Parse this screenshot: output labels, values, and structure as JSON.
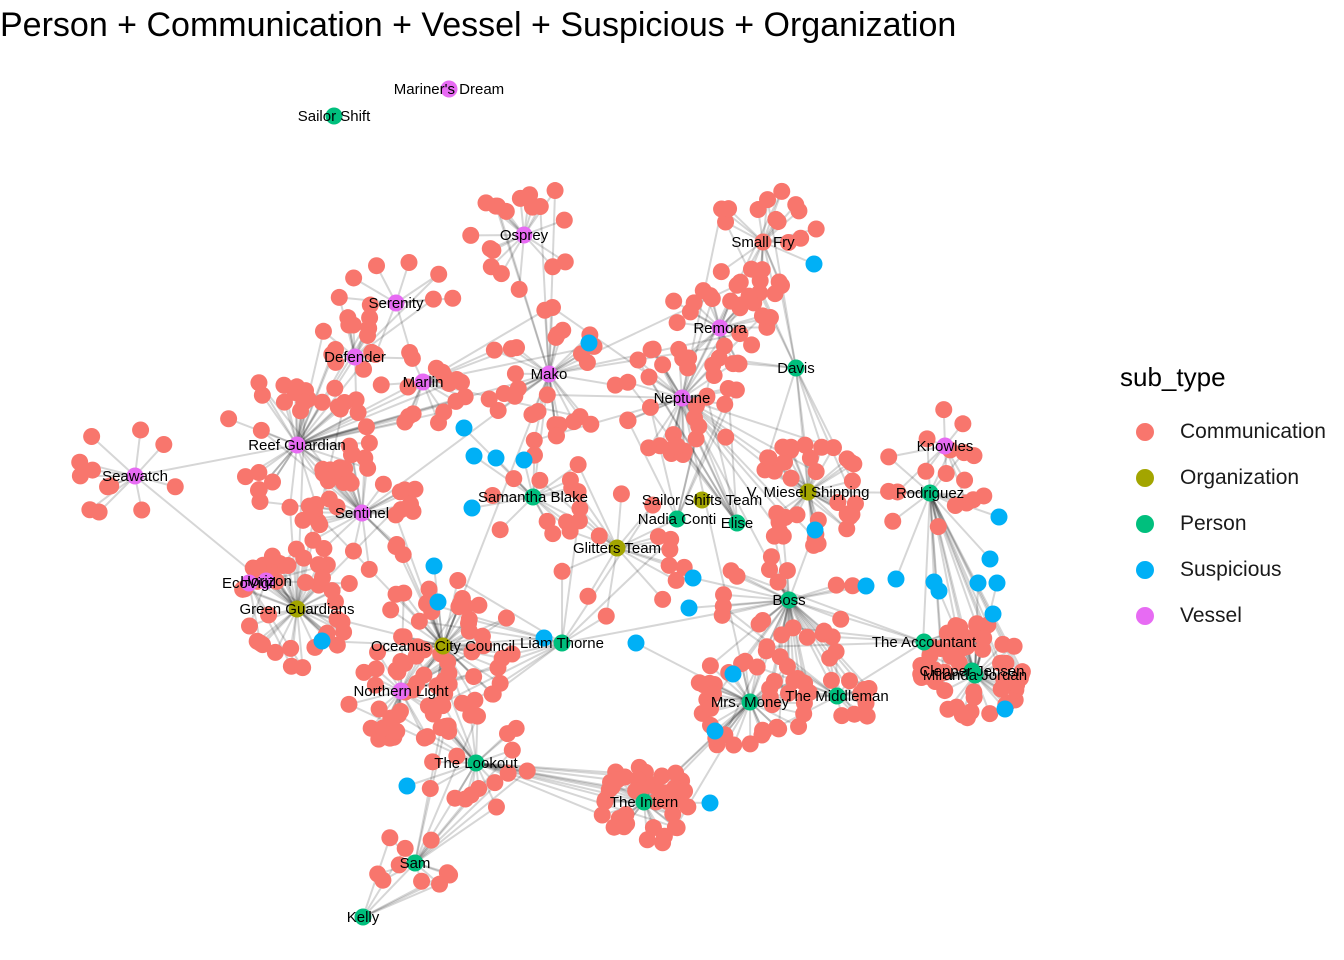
{
  "title": "Person + Communication + Vessel + Suspicious + Organization",
  "legend": {
    "title": "sub_type",
    "items": [
      {
        "label": "Communication",
        "color": "#F8766D"
      },
      {
        "label": "Organization",
        "color": "#A3A500"
      },
      {
        "label": "Person",
        "color": "#00BF7D"
      },
      {
        "label": "Suspicious",
        "color": "#00B0F6"
      },
      {
        "label": "Vessel",
        "color": "#E76BF3"
      }
    ]
  },
  "labels": {
    "sailor_shift": "Sailor Shift",
    "mariners_dream": "Mariner's Dream",
    "osprey": "Osprey",
    "small_fry": "Small Fry",
    "serenity": "Serenity",
    "remora": "Remora",
    "defender": "Defender",
    "davis": "Davis",
    "marlin": "Marlin",
    "mako": "Mako",
    "neptune": "Neptune",
    "reef_guardian": "Reef Guardian",
    "knowles": "Knowles",
    "seawatch": "Seawatch",
    "samantha_blake": "Samantha Blake",
    "sailor_shifts_team": "Sailor Shifts Team",
    "v_miesel_shipping": "V. Miesel Shipping",
    "rodriguez": "Rodriguez",
    "sentinel": "Sentinel",
    "nadia_conti": "Nadia Conti",
    "elise": "Elise",
    "glitters_team": "Glitters Team",
    "horizon": "Horizon",
    "ecovigil": "EcoVigil",
    "green_guardians": "Green Guardians",
    "boss": "Boss",
    "oceanus_city_council": "Oceanus City Council",
    "liam_thorne": "Liam Thorne",
    "the_accountant": "The Accountant",
    "clepper_jensen": "Clepper Jensen",
    "miranda_jordan": "Miranda Jordan",
    "northern_light": "Northern Light",
    "mrs_money": "Mrs. Money",
    "the_middleman": "The Middleman",
    "the_lookout": "The Lookout",
    "the_intern": "The Intern",
    "sam": "Sam",
    "kelly": "Kelly"
  }
}
